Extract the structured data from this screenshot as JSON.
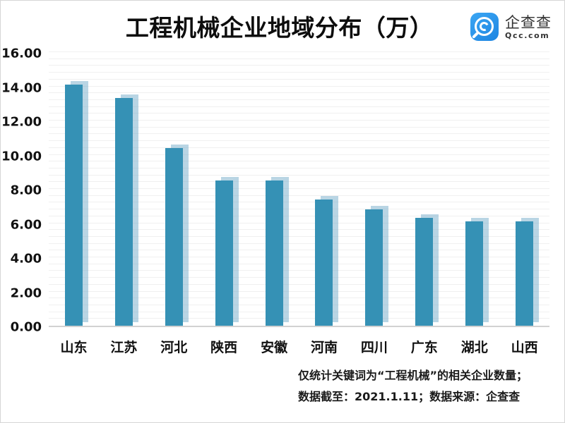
{
  "logo": {
    "name": "企查查",
    "domain": "Qcc.com",
    "brand_color": "#2492e8",
    "icon": "qcc-magnifier-c-icon"
  },
  "chart_data": {
    "type": "bar",
    "title": "工程机械企业地域分布（万）",
    "categories": [
      "山东",
      "江苏",
      "河北",
      "陕西",
      "安徽",
      "河南",
      "四川",
      "广东",
      "湖北",
      "山西"
    ],
    "values": [
      14.1,
      13.3,
      10.4,
      8.5,
      8.5,
      7.4,
      6.8,
      6.3,
      6.1,
      6.1
    ],
    "unit": "万",
    "xlabel": "",
    "ylabel": "",
    "ylim": [
      0,
      16
    ],
    "ytick_labels": [
      "0.00",
      "2.00",
      "4.00",
      "6.00",
      "8.00",
      "10.00",
      "12.00",
      "14.00",
      "16.00"
    ],
    "grid": true,
    "minor_grid_step": 0.4,
    "legend_position": "none",
    "bar_color": "#3591b5",
    "bar_shadow_color": "rgba(128,178,206,0.55)",
    "gridline_color": "#f0f0f0",
    "bar_shadow_offset": {
      "x": 8,
      "y": -5
    }
  },
  "footer": {
    "line1": "仅统计关键词为“工程机械”的相关企业数量；",
    "line2": "数据截至：2021.1.11；数据来源：企查查"
  }
}
